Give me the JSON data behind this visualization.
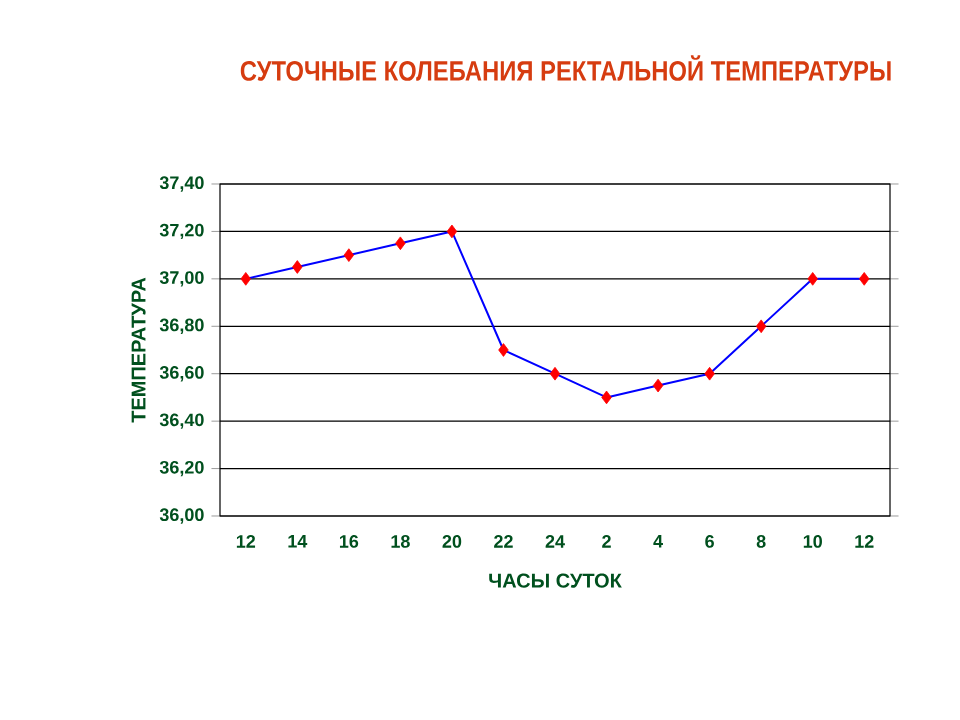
{
  "chart_data": {
    "type": "line",
    "title": "СУТОЧНЫЕ КОЛЕБАНИЯ РЕКТАЛЬНОЙ ТЕМПЕРАТУРЫ",
    "xlabel": "ЧАСЫ СУТОК",
    "ylabel": "ТЕМПЕРАТУРА",
    "categories": [
      "12",
      "14",
      "16",
      "18",
      "20",
      "22",
      "24",
      "2",
      "4",
      "6",
      "8",
      "10",
      "12"
    ],
    "series": [
      {
        "color": "#0000ff",
        "colors": [
          "#ff0000",
          "#ff0000",
          "#ff0000",
          "#ff0000",
          "#ff0000",
          "#ff0000",
          "#ff0000",
          "#ff0000",
          "#ff0000",
          "#ff0000",
          "#ff0000",
          "#ff0000",
          "#ff0000"
        ],
        "values": [
          37.0,
          37.05,
          37.1,
          37.15,
          37.2,
          36.7,
          36.6,
          36.5,
          36.55,
          36.6,
          36.8,
          37.0,
          37.0
        ]
      }
    ],
    "ylim": [
      36,
      37.4
    ],
    "yticks": [
      {
        "value": 36,
        "label": "36,00"
      },
      {
        "value": 36.2,
        "label": "36,20"
      },
      {
        "value": 36.4,
        "label": "36,40"
      },
      {
        "value": 36.6,
        "label": "36,60"
      },
      {
        "value": 36.8,
        "label": "36,80"
      },
      {
        "value": 37,
        "label": "37,00"
      },
      {
        "value": 37.2,
        "label": "37,20"
      },
      {
        "value": 37.4,
        "label": "37,40"
      }
    ],
    "grid": "y",
    "marker": "diamond",
    "line_style": "solid"
  }
}
